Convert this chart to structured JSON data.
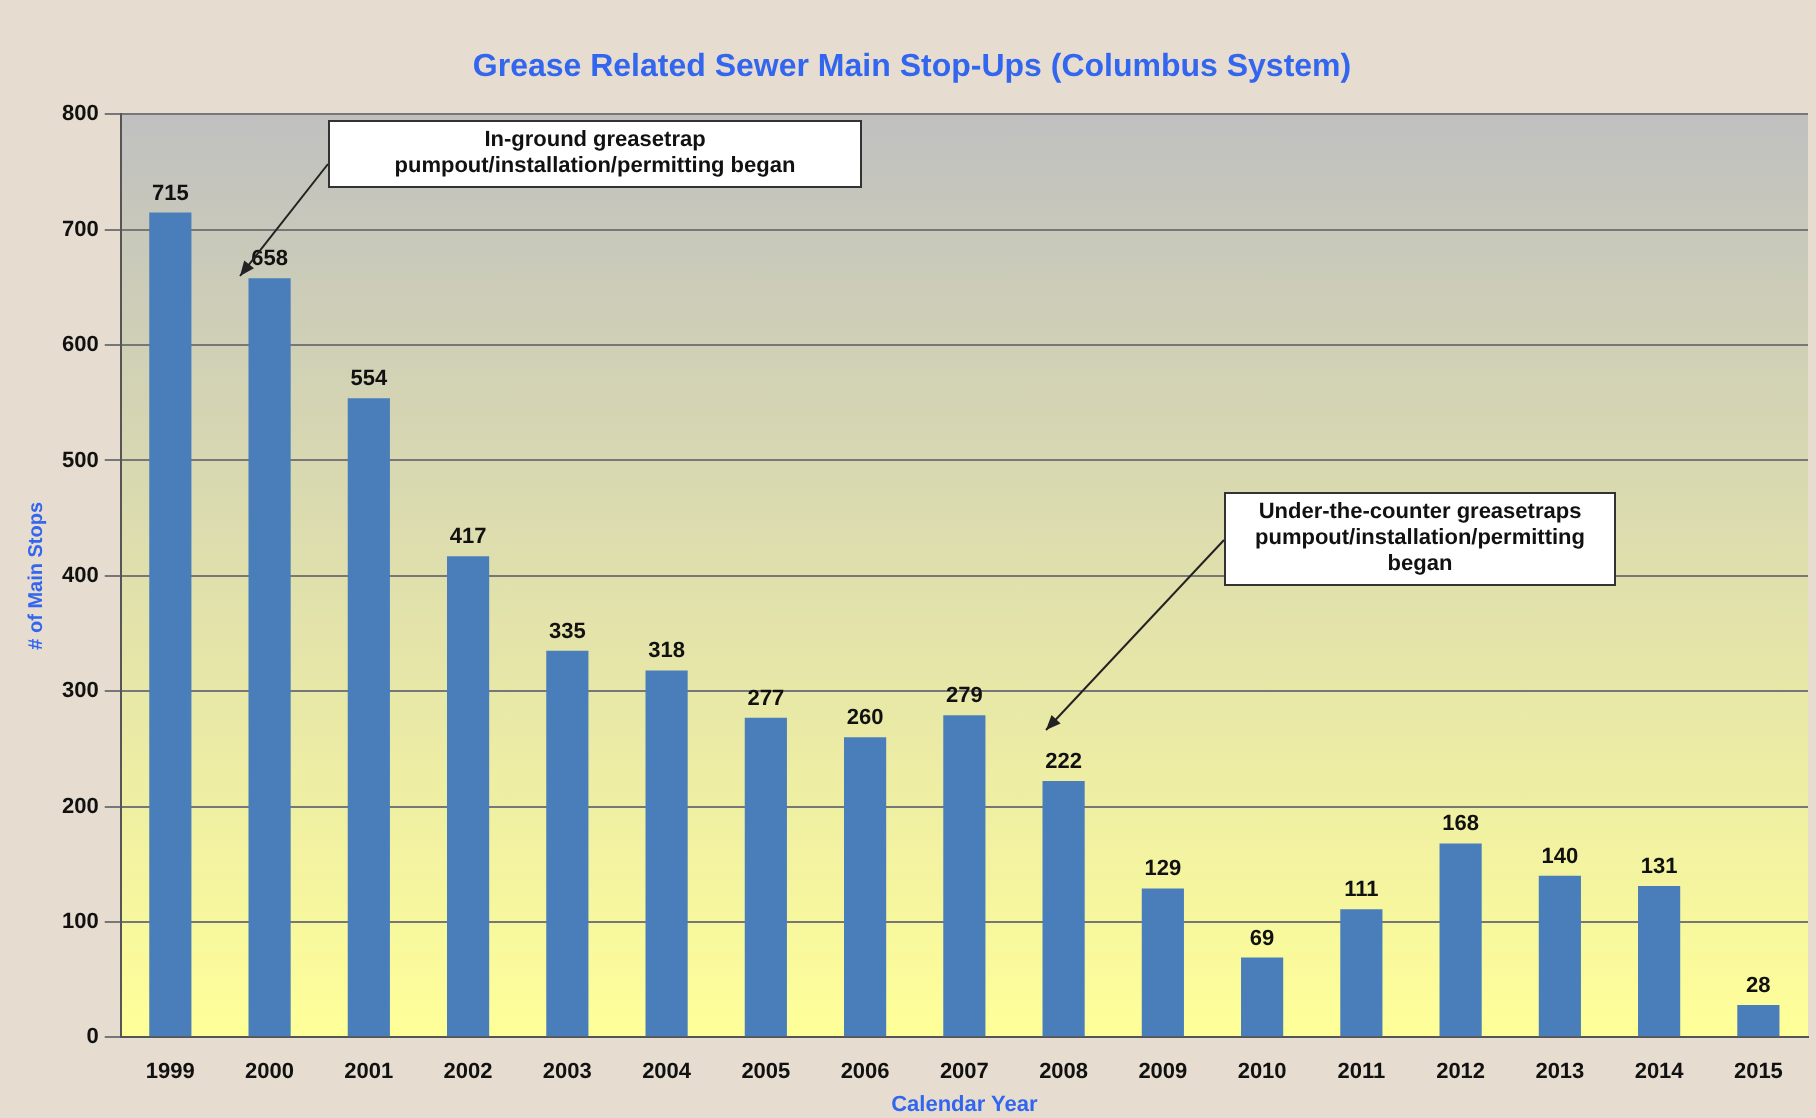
{
  "chart_data": {
    "type": "bar",
    "title": "Grease Related Sewer Main Stop-Ups (Columbus System)",
    "xlabel": "Calendar Year",
    "ylabel": "# of Main Stops",
    "categories": [
      "1999",
      "2000",
      "2001",
      "2002",
      "2003",
      "2004",
      "2005",
      "2006",
      "2007",
      "2008",
      "2009",
      "2010",
      "2011",
      "2012",
      "2013",
      "2014",
      "2015"
    ],
    "values": [
      715,
      658,
      554,
      417,
      335,
      318,
      277,
      260,
      279,
      222,
      129,
      69,
      111,
      168,
      140,
      131,
      28
    ],
    "color": "#4a7ebb",
    "ylim": [
      0,
      800
    ],
    "yticks": [
      0,
      100,
      200,
      300,
      400,
      500,
      600,
      700,
      800
    ],
    "grid": "y",
    "data_labels": true,
    "legend": false,
    "annotations": [
      "In-ground greasetrap pumpout/installation/permitting began",
      "Under-the-counter greasetraps pumpout/installation/permitting began"
    ]
  }
}
